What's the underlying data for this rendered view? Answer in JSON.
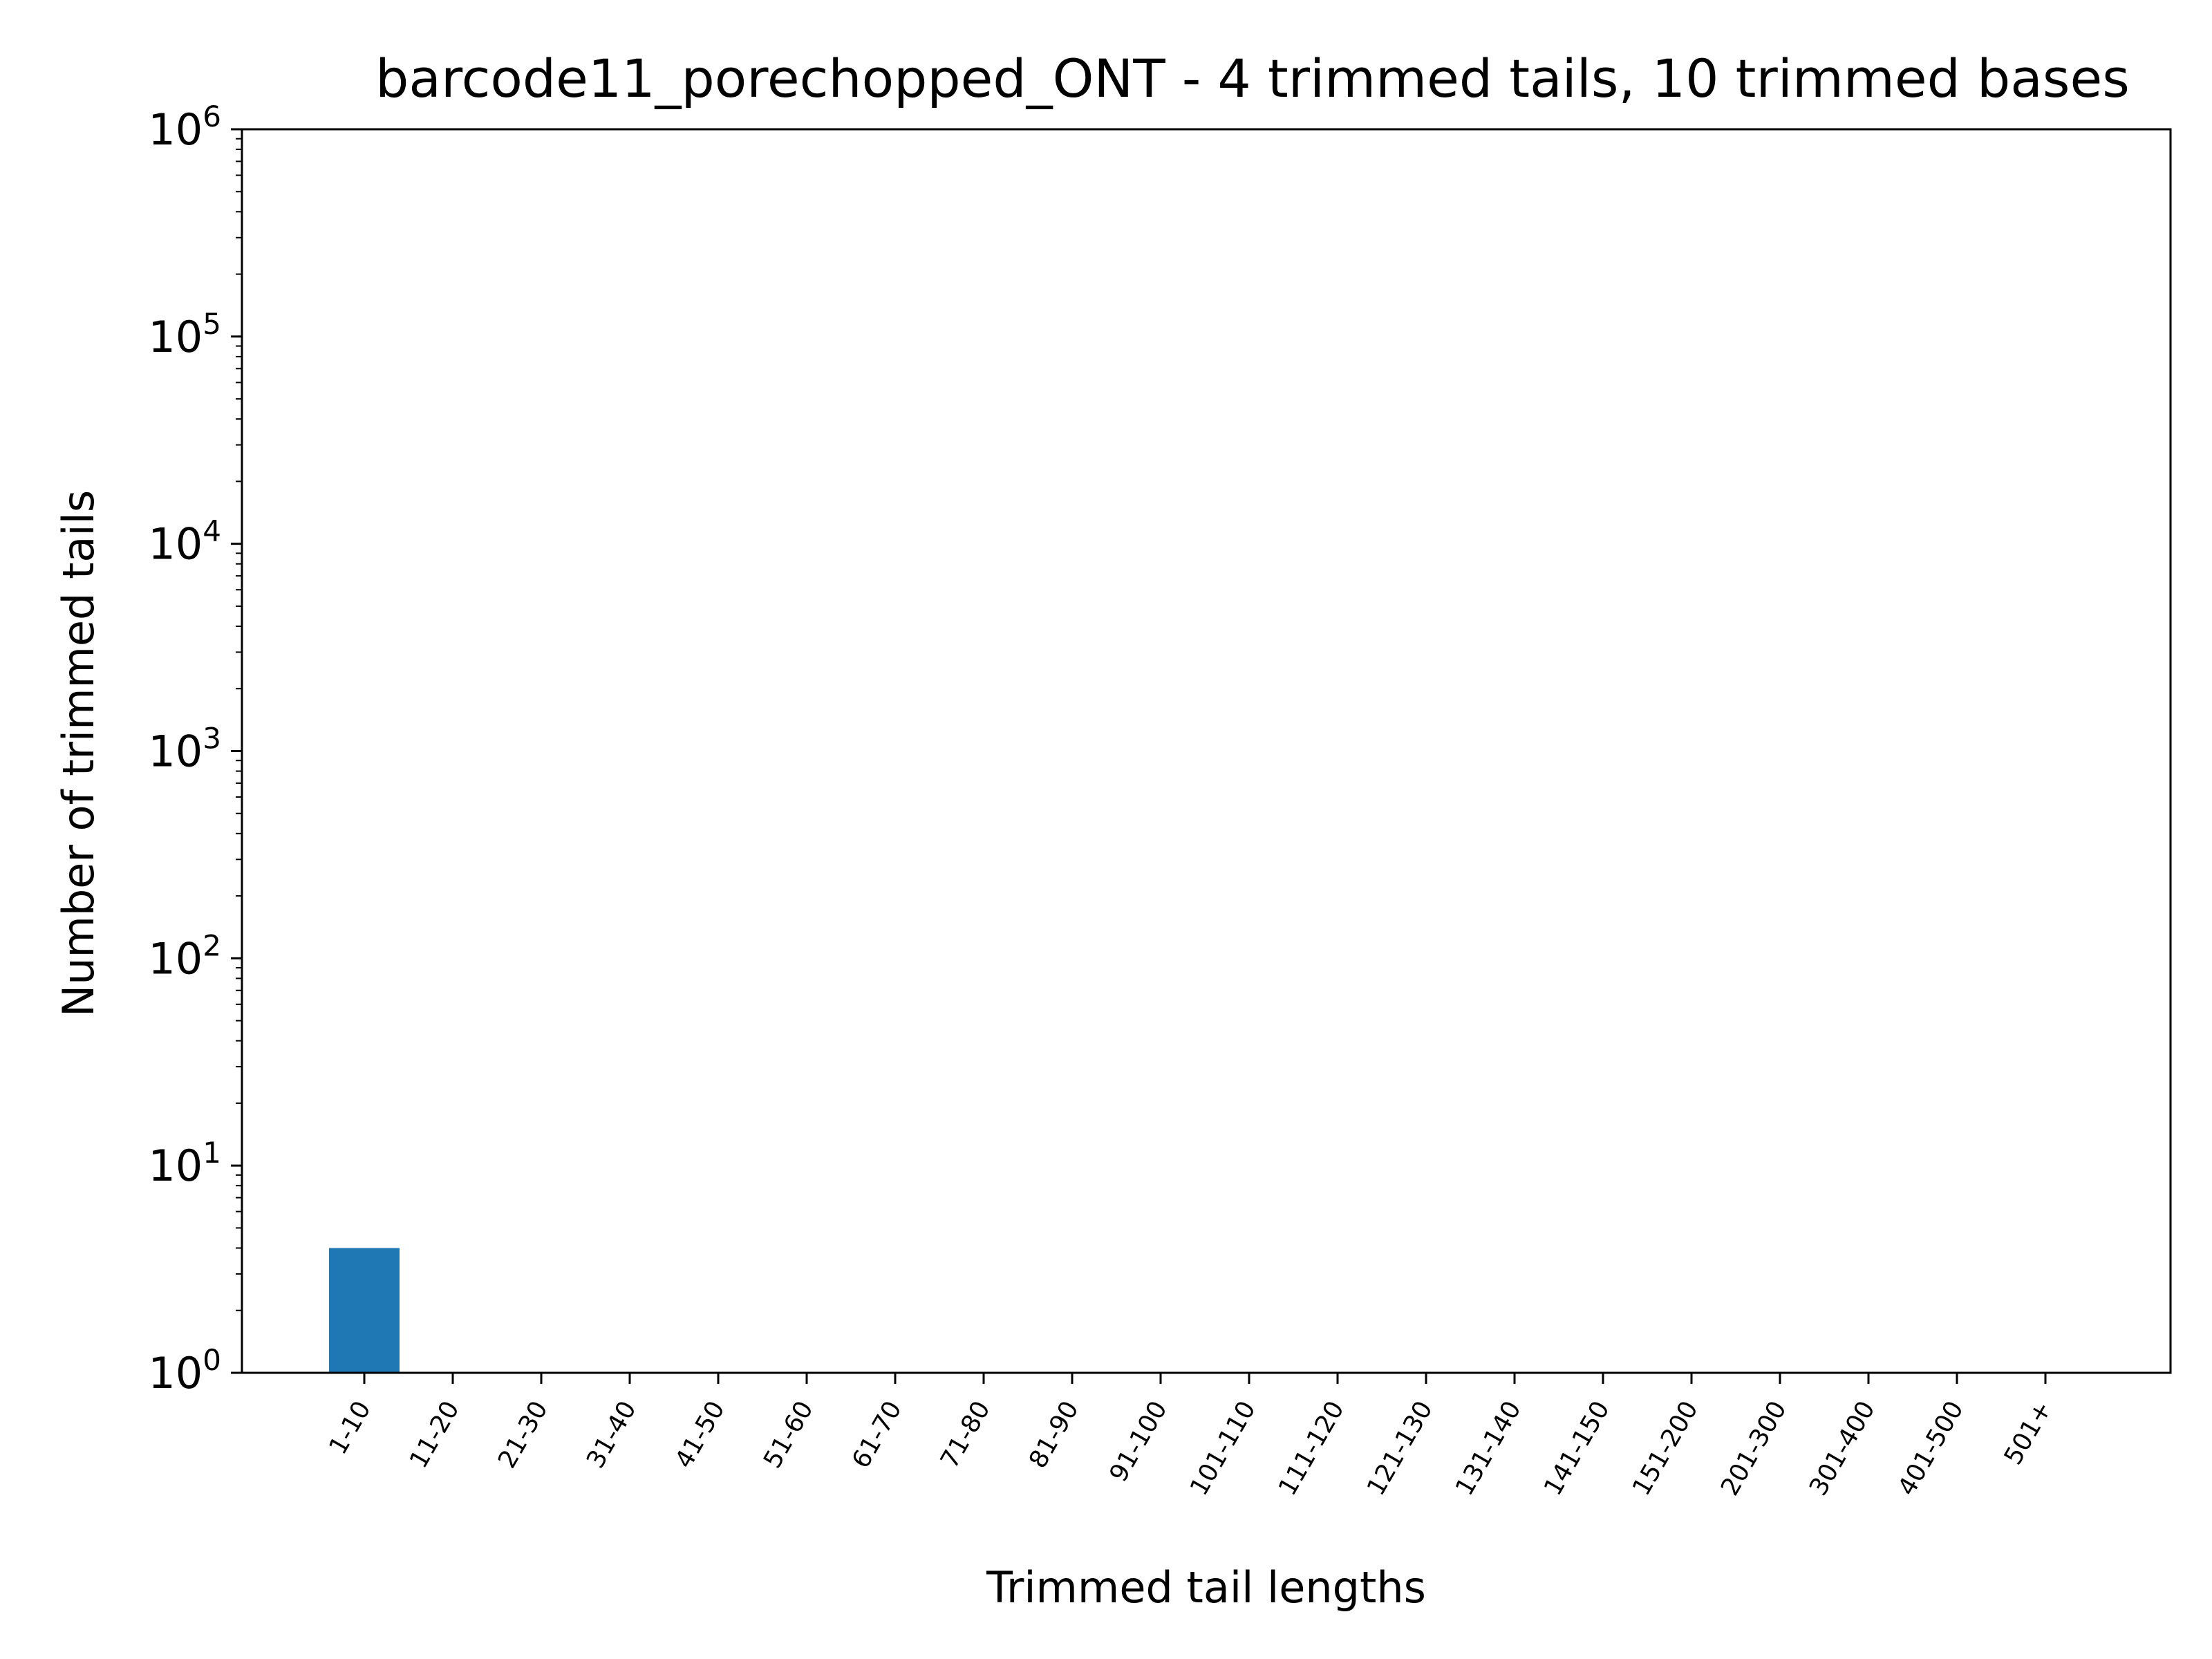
{
  "chart_data": {
    "type": "bar",
    "title": "barcode11_porechopped_ONT - 4 trimmed tails, 10 trimmed bases",
    "xlabel": "Trimmed tail lengths",
    "ylabel": "Number of trimmed tails",
    "yscale": "log",
    "ylim": [
      1,
      1000000
    ],
    "y_ticks": [
      {
        "base": "10",
        "exp": "0"
      },
      {
        "base": "10",
        "exp": "1"
      },
      {
        "base": "10",
        "exp": "2"
      },
      {
        "base": "10",
        "exp": "3"
      },
      {
        "base": "10",
        "exp": "4"
      },
      {
        "base": "10",
        "exp": "5"
      },
      {
        "base": "10",
        "exp": "6"
      }
    ],
    "categories": [
      "1-10",
      "11-20",
      "21-30",
      "31-40",
      "41-50",
      "51-60",
      "61-70",
      "71-80",
      "81-90",
      "91-100",
      "101-110",
      "111-120",
      "121-130",
      "131-140",
      "141-150",
      "151-200",
      "201-300",
      "301-400",
      "401-500",
      "501+"
    ],
    "values": [
      4,
      0,
      0,
      0,
      0,
      0,
      0,
      0,
      0,
      0,
      0,
      0,
      0,
      0,
      0,
      0,
      0,
      0,
      0,
      0
    ],
    "bar_color": "#1f77b4",
    "grid": false,
    "legend": false
  }
}
